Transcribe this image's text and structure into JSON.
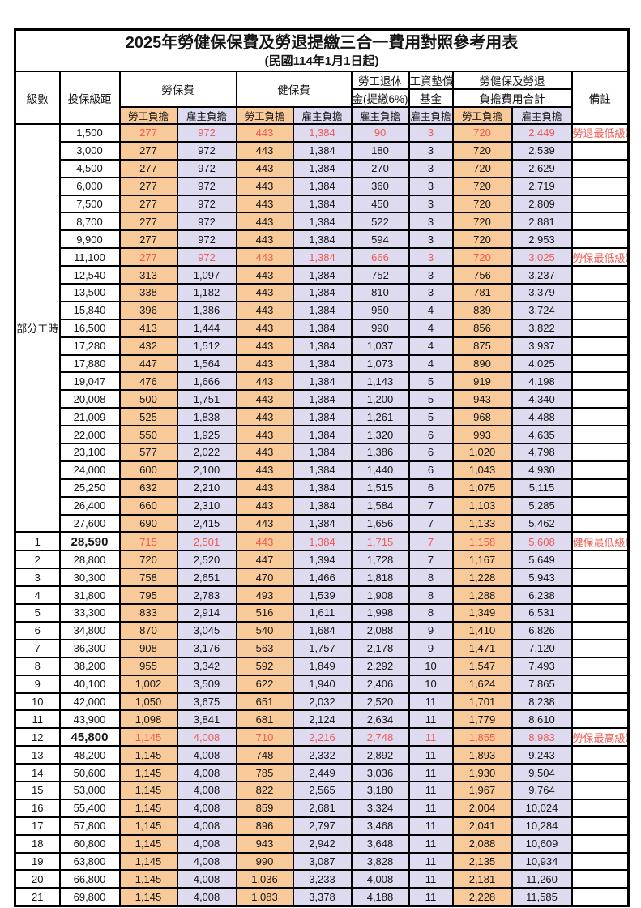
{
  "title": "2025年勞健保保費及勞退提繳三合一費用對照參考用表",
  "subtitle": "(民國114年1月1日起)",
  "colors": {
    "employee_bg": "#F9CA99",
    "employer_bg": "#DEDAF0",
    "highlight_text": "#EE5B52",
    "border": "#000000"
  },
  "header": {
    "level": "級數",
    "bracket": "投保級距",
    "labor_fee": "勞保費",
    "health_fee": "健保費",
    "pension_line1": "勞工退休",
    "pension_line2": "金(提繳6%)",
    "wage_fund_line1": "工資墊償",
    "wage_fund_line2": "基金",
    "total_line1": "勞健保及勞退",
    "total_line2": "負擔費用合計",
    "remark": "備註",
    "employee_burden": "勞工負擔",
    "employer_burden": "雇主負擔"
  },
  "part_time_label": "部分工時",
  "rows": [
    {
      "level": "",
      "bracket": "1,500",
      "values": [
        "277",
        "972",
        "443",
        "1,384",
        "90",
        "3",
        "720",
        "2,449"
      ],
      "remark": "勞退最低級距",
      "highlight": true,
      "emphasis": false
    },
    {
      "level": "",
      "bracket": "3,000",
      "values": [
        "277",
        "972",
        "443",
        "1,384",
        "180",
        "3",
        "720",
        "2,539"
      ],
      "remark": "",
      "highlight": false,
      "emphasis": false
    },
    {
      "level": "",
      "bracket": "4,500",
      "values": [
        "277",
        "972",
        "443",
        "1,384",
        "270",
        "3",
        "720",
        "2,629"
      ],
      "remark": "",
      "highlight": false,
      "emphasis": false
    },
    {
      "level": "",
      "bracket": "6,000",
      "values": [
        "277",
        "972",
        "443",
        "1,384",
        "360",
        "3",
        "720",
        "2,719"
      ],
      "remark": "",
      "highlight": false,
      "emphasis": false
    },
    {
      "level": "",
      "bracket": "7,500",
      "values": [
        "277",
        "972",
        "443",
        "1,384",
        "450",
        "3",
        "720",
        "2,809"
      ],
      "remark": "",
      "highlight": false,
      "emphasis": false
    },
    {
      "level": "",
      "bracket": "8,700",
      "values": [
        "277",
        "972",
        "443",
        "1,384",
        "522",
        "3",
        "720",
        "2,881"
      ],
      "remark": "",
      "highlight": false,
      "emphasis": false
    },
    {
      "level": "",
      "bracket": "9,900",
      "values": [
        "277",
        "972",
        "443",
        "1,384",
        "594",
        "3",
        "720",
        "2,953"
      ],
      "remark": "",
      "highlight": false,
      "emphasis": false
    },
    {
      "level": "",
      "bracket": "11,100",
      "values": [
        "277",
        "972",
        "443",
        "1,384",
        "666",
        "3",
        "720",
        "3,025"
      ],
      "remark": "勞保最低級距",
      "highlight": true,
      "emphasis": false
    },
    {
      "level": "",
      "bracket": "12,540",
      "values": [
        "313",
        "1,097",
        "443",
        "1,384",
        "752",
        "3",
        "756",
        "3,237"
      ],
      "remark": "",
      "highlight": false,
      "emphasis": false
    },
    {
      "level": "",
      "bracket": "13,500",
      "values": [
        "338",
        "1,182",
        "443",
        "1,384",
        "810",
        "3",
        "781",
        "3,379"
      ],
      "remark": "",
      "highlight": false,
      "emphasis": false
    },
    {
      "level": "",
      "bracket": "15,840",
      "values": [
        "396",
        "1,386",
        "443",
        "1,384",
        "950",
        "4",
        "839",
        "3,724"
      ],
      "remark": "",
      "highlight": false,
      "emphasis": false
    },
    {
      "level": "",
      "bracket": "16,500",
      "values": [
        "413",
        "1,444",
        "443",
        "1,384",
        "990",
        "4",
        "856",
        "3,822"
      ],
      "remark": "",
      "highlight": false,
      "emphasis": false
    },
    {
      "level": "",
      "bracket": "17,280",
      "values": [
        "432",
        "1,512",
        "443",
        "1,384",
        "1,037",
        "4",
        "875",
        "3,937"
      ],
      "remark": "",
      "highlight": false,
      "emphasis": false
    },
    {
      "level": "",
      "bracket": "17,880",
      "values": [
        "447",
        "1,564",
        "443",
        "1,384",
        "1,073",
        "4",
        "890",
        "4,025"
      ],
      "remark": "",
      "highlight": false,
      "emphasis": false
    },
    {
      "level": "",
      "bracket": "19,047",
      "values": [
        "476",
        "1,666",
        "443",
        "1,384",
        "1,143",
        "5",
        "919",
        "4,198"
      ],
      "remark": "",
      "highlight": false,
      "emphasis": false
    },
    {
      "level": "",
      "bracket": "20,008",
      "values": [
        "500",
        "1,751",
        "443",
        "1,384",
        "1,200",
        "5",
        "943",
        "4,340"
      ],
      "remark": "",
      "highlight": false,
      "emphasis": false
    },
    {
      "level": "",
      "bracket": "21,009",
      "values": [
        "525",
        "1,838",
        "443",
        "1,384",
        "1,261",
        "5",
        "968",
        "4,488"
      ],
      "remark": "",
      "highlight": false,
      "emphasis": false
    },
    {
      "level": "",
      "bracket": "22,000",
      "values": [
        "550",
        "1,925",
        "443",
        "1,384",
        "1,320",
        "6",
        "993",
        "4,635"
      ],
      "remark": "",
      "highlight": false,
      "emphasis": false
    },
    {
      "level": "",
      "bracket": "23,100",
      "values": [
        "577",
        "2,022",
        "443",
        "1,384",
        "1,386",
        "6",
        "1,020",
        "4,798"
      ],
      "remark": "",
      "highlight": false,
      "emphasis": false
    },
    {
      "level": "",
      "bracket": "24,000",
      "values": [
        "600",
        "2,100",
        "443",
        "1,384",
        "1,440",
        "6",
        "1,043",
        "4,930"
      ],
      "remark": "",
      "highlight": false,
      "emphasis": false
    },
    {
      "level": "",
      "bracket": "25,250",
      "values": [
        "632",
        "2,210",
        "443",
        "1,384",
        "1,515",
        "6",
        "1,075",
        "5,115"
      ],
      "remark": "",
      "highlight": false,
      "emphasis": false
    },
    {
      "level": "",
      "bracket": "26,400",
      "values": [
        "660",
        "2,310",
        "443",
        "1,384",
        "1,584",
        "7",
        "1,103",
        "5,285"
      ],
      "remark": "",
      "highlight": false,
      "emphasis": false
    },
    {
      "level": "",
      "bracket": "27,600",
      "values": [
        "690",
        "2,415",
        "443",
        "1,384",
        "1,656",
        "7",
        "1,133",
        "5,462"
      ],
      "remark": "",
      "highlight": false,
      "emphasis": false
    },
    {
      "level": "1",
      "bracket": "28,590",
      "values": [
        "715",
        "2,501",
        "443",
        "1,384",
        "1,715",
        "7",
        "1,158",
        "5,608"
      ],
      "remark": "健保最低級距",
      "highlight": true,
      "emphasis": true
    },
    {
      "level": "2",
      "bracket": "28,800",
      "values": [
        "720",
        "2,520",
        "447",
        "1,394",
        "1,728",
        "7",
        "1,167",
        "5,649"
      ],
      "remark": "",
      "highlight": false,
      "emphasis": false
    },
    {
      "level": "3",
      "bracket": "30,300",
      "values": [
        "758",
        "2,651",
        "470",
        "1,466",
        "1,818",
        "8",
        "1,228",
        "5,943"
      ],
      "remark": "",
      "highlight": false,
      "emphasis": false
    },
    {
      "level": "4",
      "bracket": "31,800",
      "values": [
        "795",
        "2,783",
        "493",
        "1,539",
        "1,908",
        "8",
        "1,288",
        "6,238"
      ],
      "remark": "",
      "highlight": false,
      "emphasis": false
    },
    {
      "level": "5",
      "bracket": "33,300",
      "values": [
        "833",
        "2,914",
        "516",
        "1,611",
        "1,998",
        "8",
        "1,349",
        "6,531"
      ],
      "remark": "",
      "highlight": false,
      "emphasis": false
    },
    {
      "level": "6",
      "bracket": "34,800",
      "values": [
        "870",
        "3,045",
        "540",
        "1,684",
        "2,088",
        "9",
        "1,410",
        "6,826"
      ],
      "remark": "",
      "highlight": false,
      "emphasis": false
    },
    {
      "level": "7",
      "bracket": "36,300",
      "values": [
        "908",
        "3,176",
        "563",
        "1,757",
        "2,178",
        "9",
        "1,471",
        "7,120"
      ],
      "remark": "",
      "highlight": false,
      "emphasis": false
    },
    {
      "level": "8",
      "bracket": "38,200",
      "values": [
        "955",
        "3,342",
        "592",
        "1,849",
        "2,292",
        "10",
        "1,547",
        "7,493"
      ],
      "remark": "",
      "highlight": false,
      "emphasis": false
    },
    {
      "level": "9",
      "bracket": "40,100",
      "values": [
        "1,002",
        "3,509",
        "622",
        "1,940",
        "2,406",
        "10",
        "1,624",
        "7,865"
      ],
      "remark": "",
      "highlight": false,
      "emphasis": false
    },
    {
      "level": "10",
      "bracket": "42,000",
      "values": [
        "1,050",
        "3,675",
        "651",
        "2,032",
        "2,520",
        "11",
        "1,701",
        "8,238"
      ],
      "remark": "",
      "highlight": false,
      "emphasis": false
    },
    {
      "level": "11",
      "bracket": "43,900",
      "values": [
        "1,098",
        "3,841",
        "681",
        "2,124",
        "2,634",
        "11",
        "1,779",
        "8,610"
      ],
      "remark": "",
      "highlight": false,
      "emphasis": false
    },
    {
      "level": "12",
      "bracket": "45,800",
      "values": [
        "1,145",
        "4,008",
        "710",
        "2,216",
        "2,748",
        "11",
        "1,855",
        "8,983"
      ],
      "remark": "勞保最高級距",
      "highlight": true,
      "emphasis": true
    },
    {
      "level": "13",
      "bracket": "48,200",
      "values": [
        "1,145",
        "4,008",
        "748",
        "2,332",
        "2,892",
        "11",
        "1,893",
        "9,243"
      ],
      "remark": "",
      "highlight": false,
      "emphasis": false
    },
    {
      "level": "14",
      "bracket": "50,600",
      "values": [
        "1,145",
        "4,008",
        "785",
        "2,449",
        "3,036",
        "11",
        "1,930",
        "9,504"
      ],
      "remark": "",
      "highlight": false,
      "emphasis": false
    },
    {
      "level": "15",
      "bracket": "53,000",
      "values": [
        "1,145",
        "4,008",
        "822",
        "2,565",
        "3,180",
        "11",
        "1,967",
        "9,764"
      ],
      "remark": "",
      "highlight": false,
      "emphasis": false
    },
    {
      "level": "16",
      "bracket": "55,400",
      "values": [
        "1,145",
        "4,008",
        "859",
        "2,681",
        "3,324",
        "11",
        "2,004",
        "10,024"
      ],
      "remark": "",
      "highlight": false,
      "emphasis": false
    },
    {
      "level": "17",
      "bracket": "57,800",
      "values": [
        "1,145",
        "4,008",
        "896",
        "2,797",
        "3,468",
        "11",
        "2,041",
        "10,284"
      ],
      "remark": "",
      "highlight": false,
      "emphasis": false
    },
    {
      "level": "18",
      "bracket": "60,800",
      "values": [
        "1,145",
        "4,008",
        "943",
        "2,942",
        "3,648",
        "11",
        "2,088",
        "10,609"
      ],
      "remark": "",
      "highlight": false,
      "emphasis": false
    },
    {
      "level": "19",
      "bracket": "63,800",
      "values": [
        "1,145",
        "4,008",
        "990",
        "3,087",
        "3,828",
        "11",
        "2,135",
        "10,934"
      ],
      "remark": "",
      "highlight": false,
      "emphasis": false
    },
    {
      "level": "20",
      "bracket": "66,800",
      "values": [
        "1,145",
        "4,008",
        "1,036",
        "3,233",
        "4,008",
        "11",
        "2,181",
        "11,260"
      ],
      "remark": "",
      "highlight": false,
      "emphasis": false
    },
    {
      "level": "21",
      "bracket": "69,800",
      "values": [
        "1,145",
        "4,008",
        "1,083",
        "3,378",
        "4,188",
        "11",
        "2,228",
        "11,585"
      ],
      "remark": "",
      "highlight": false,
      "emphasis": false
    }
  ]
}
